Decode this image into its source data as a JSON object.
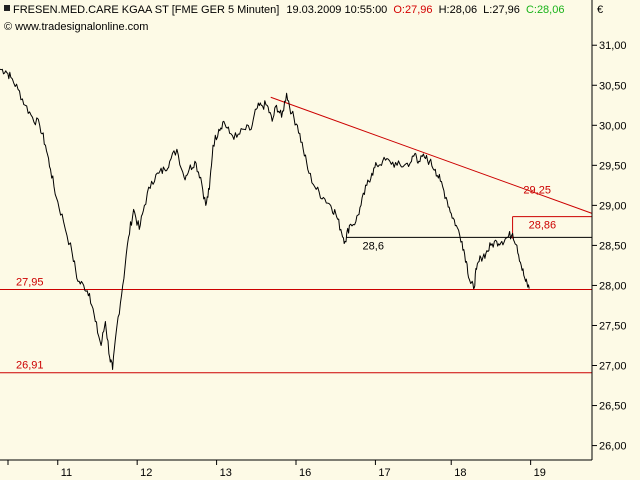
{
  "header": {
    "instrument": "FRESEN.MED.CARE KGAA ST [FME GER  5 Minuten]",
    "datetime": "19.03.2009 10:55:00",
    "open": "O:27,96",
    "high": "H:28,06",
    "low": "L:27,96",
    "close": "C:28,06",
    "watermark": "© www.tradesignalonline.com",
    "currency": "€"
  },
  "chart_data": {
    "type": "line",
    "ylim": [
      25.82,
      31.34
    ],
    "y_ticks": [
      {
        "value": 26.0,
        "label": "26,00"
      },
      {
        "value": 26.5,
        "label": "26,50"
      },
      {
        "value": 27.0,
        "label": "27,00"
      },
      {
        "value": 27.5,
        "label": "27,50"
      },
      {
        "value": 28.0,
        "label": "28,00"
      },
      {
        "value": 28.5,
        "label": "28,50"
      },
      {
        "value": 29.0,
        "label": "29,00"
      },
      {
        "value": 29.5,
        "label": "29,50"
      },
      {
        "value": 30.0,
        "label": "30,00"
      },
      {
        "value": 30.5,
        "label": "30,50"
      },
      {
        "value": 31.0,
        "label": "31,00"
      }
    ],
    "x_range": [
      0,
      82
    ],
    "x_ticks": [
      {
        "t": 8,
        "label": "11"
      },
      {
        "t": 19,
        "label": "12"
      },
      {
        "t": 30,
        "label": "13"
      },
      {
        "t": 41,
        "label": "16"
      },
      {
        "t": 52,
        "label": "17"
      },
      {
        "t": 62.5,
        "label": "18"
      },
      {
        "t": 73.5,
        "label": "19"
      }
    ],
    "series": [
      {
        "color": "#000000",
        "points": [
          [
            0,
            30.7
          ],
          [
            0.8,
            30.68
          ],
          [
            1.5,
            30.6
          ],
          [
            2.5,
            30.45
          ],
          [
            3.5,
            30.25
          ],
          [
            4.5,
            30.1
          ],
          [
            5.5,
            30.0
          ],
          [
            6.3,
            29.75
          ],
          [
            7,
            29.45
          ],
          [
            7.8,
            29.1
          ],
          [
            8.8,
            28.8
          ],
          [
            10,
            28.4
          ],
          [
            10.8,
            28.05
          ],
          [
            11.6,
            28.0
          ],
          [
            12.4,
            27.9
          ],
          [
            13.2,
            27.55
          ],
          [
            14,
            27.25
          ],
          [
            14.6,
            27.55
          ],
          [
            15.2,
            27.1
          ],
          [
            15.6,
            26.95
          ],
          [
            16.2,
            27.5
          ],
          [
            17,
            28.0
          ],
          [
            17.8,
            28.6
          ],
          [
            18.5,
            28.95
          ],
          [
            19.3,
            28.7
          ],
          [
            20,
            29.0
          ],
          [
            21,
            29.3
          ],
          [
            22,
            29.4
          ],
          [
            22.8,
            29.45
          ],
          [
            23.5,
            29.55
          ],
          [
            24.5,
            29.7
          ],
          [
            25.5,
            29.35
          ],
          [
            26.2,
            29.45
          ],
          [
            27,
            29.55
          ],
          [
            27.8,
            29.35
          ],
          [
            28.5,
            29.0
          ],
          [
            29,
            29.2
          ],
          [
            29.5,
            29.75
          ],
          [
            30.3,
            29.95
          ],
          [
            31,
            30.05
          ],
          [
            31.8,
            29.9
          ],
          [
            32.8,
            29.85
          ],
          [
            33.8,
            29.95
          ],
          [
            34.8,
            29.95
          ],
          [
            35.5,
            30.2
          ],
          [
            36.2,
            30.25
          ],
          [
            37,
            30.25
          ],
          [
            37.7,
            30.05
          ],
          [
            38.3,
            30.25
          ],
          [
            39,
            30.1
          ],
          [
            39.7,
            30.4
          ],
          [
            40.4,
            30.15
          ],
          [
            41.2,
            30.0
          ],
          [
            42,
            29.7
          ],
          [
            42.8,
            29.4
          ],
          [
            43.8,
            29.2
          ],
          [
            44.8,
            29.1
          ],
          [
            45.8,
            29.0
          ],
          [
            46.5,
            28.9
          ],
          [
            47.2,
            28.7
          ],
          [
            47.8,
            28.55
          ],
          [
            48.4,
            28.75
          ],
          [
            49.3,
            28.8
          ],
          [
            50,
            29.0
          ],
          [
            50.8,
            29.25
          ],
          [
            51.5,
            29.4
          ],
          [
            52.2,
            29.5
          ],
          [
            53,
            29.55
          ],
          [
            54,
            29.55
          ],
          [
            55,
            29.5
          ],
          [
            56,
            29.5
          ],
          [
            57,
            29.55
          ],
          [
            57.5,
            29.65
          ],
          [
            58,
            29.55
          ],
          [
            58.8,
            29.6
          ],
          [
            59.5,
            29.55
          ],
          [
            60.3,
            29.45
          ],
          [
            61,
            29.3
          ],
          [
            61.8,
            29.1
          ],
          [
            62.5,
            28.9
          ],
          [
            63.2,
            28.75
          ],
          [
            64,
            28.55
          ],
          [
            64.6,
            28.3
          ],
          [
            65.1,
            28.05
          ],
          [
            65.6,
            27.96
          ],
          [
            66,
            28.2
          ],
          [
            66.6,
            28.35
          ],
          [
            67.3,
            28.4
          ],
          [
            68,
            28.5
          ],
          [
            68.8,
            28.55
          ],
          [
            69.5,
            28.55
          ],
          [
            70.3,
            28.6
          ],
          [
            71,
            28.65
          ],
          [
            71.6,
            28.5
          ],
          [
            72.2,
            28.25
          ],
          [
            72.8,
            28.05
          ],
          [
            73.3,
            27.96
          ]
        ]
      }
    ],
    "lines": [
      {
        "kind": "horizontal",
        "y": 27.95,
        "color": "#cc0000",
        "label": "27,95"
      },
      {
        "kind": "horizontal",
        "y": 26.91,
        "color": "#cc0000",
        "label": "26,91"
      },
      {
        "kind": "horizontal",
        "y": 28.6,
        "x_start": 48,
        "x_end": 82,
        "color": "#000000",
        "label": "28,6"
      },
      {
        "kind": "horizontal",
        "y": 28.86,
        "x_start": 71,
        "x_end": 82,
        "color": "#cc0000",
        "label": "28,86"
      },
      {
        "kind": "trend",
        "start": [
          37.5,
          30.35
        ],
        "end": [
          82,
          28.9
        ],
        "color": "#cc0000",
        "label": "29,25"
      }
    ]
  }
}
